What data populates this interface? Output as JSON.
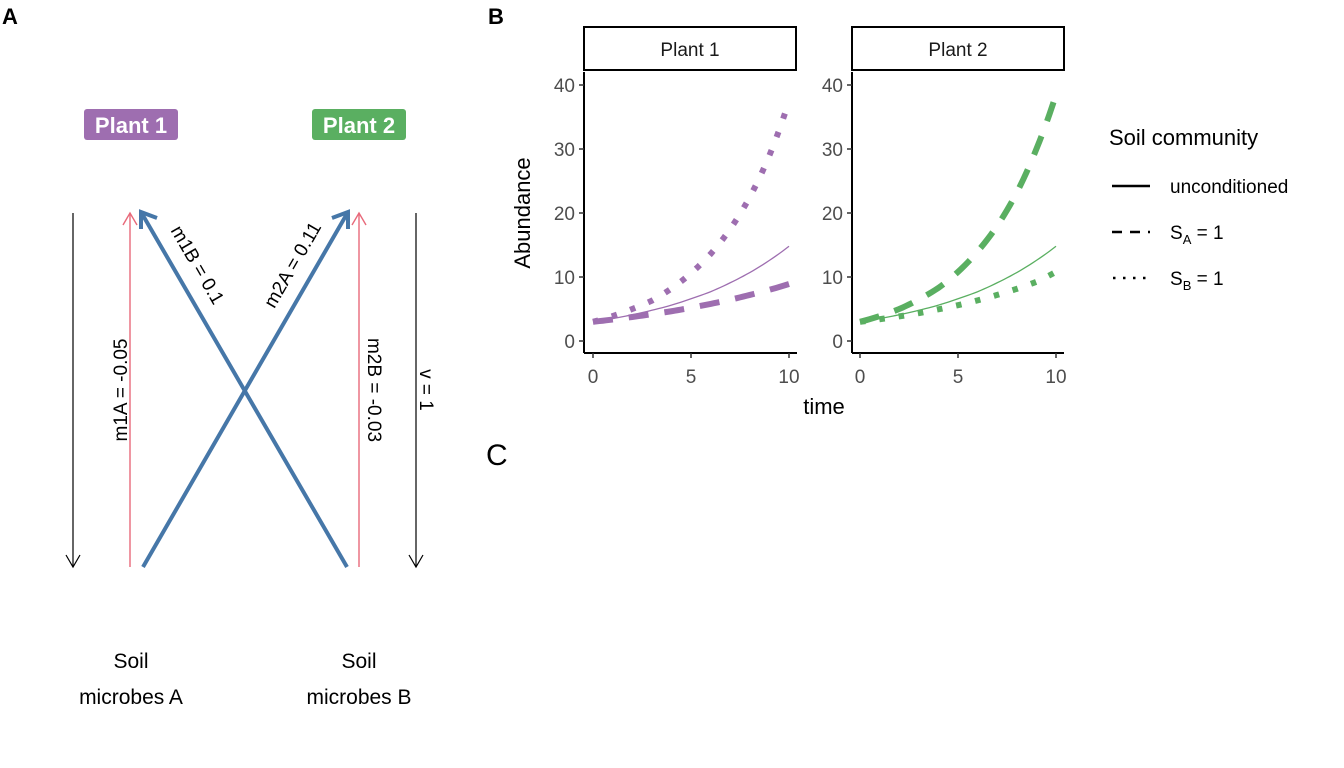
{
  "panels": {
    "a": {
      "letter": "A"
    },
    "b": {
      "letter": "B"
    },
    "c": {
      "letter": "C"
    }
  },
  "diagram": {
    "plant1": {
      "label": "Plant 1",
      "color": "#9E6EB0"
    },
    "plant2": {
      "label": "Plant 2",
      "color": "#5AAF61"
    },
    "soil_a": {
      "line1": "Soil",
      "line2": "microbes A"
    },
    "soil_b": {
      "line1": "Soil",
      "line2": "microbes B"
    },
    "edges": {
      "m1A": {
        "label": "m1A = -0.05",
        "color": "#E8697A"
      },
      "m1B": {
        "label": "m1B = 0.1",
        "color": "#4677A8"
      },
      "m2A": {
        "label": "m2A = 0.11",
        "color": "#4677A8"
      },
      "m2B": {
        "label": "m2B = -0.03",
        "color": "#E8697A"
      },
      "v_left": {
        "label": "",
        "color": "#000000"
      },
      "v_right": {
        "label": "v = 1",
        "color": "#000000"
      }
    }
  },
  "chart_data": {
    "type": "line",
    "xlabel": "time",
    "ylabel": "Abundance",
    "xlim": [
      0,
      10
    ],
    "ylim": [
      0,
      40
    ],
    "x_ticks": [
      "0",
      "5",
      "10"
    ],
    "y_ticks": [
      "0",
      "10",
      "20",
      "30",
      "40"
    ],
    "x_tick_values": [
      0,
      5,
      10
    ],
    "y_tick_values": [
      0,
      10,
      20,
      30,
      40
    ],
    "grid": false,
    "legend": {
      "title": "Soil community",
      "position": "right",
      "entries": [
        {
          "label": "unconditioned",
          "linetype": "solid"
        },
        {
          "label_main": "S",
          "label_sub": "A",
          "label_rest": " = 1",
          "linetype": "dashed"
        },
        {
          "label_main": "S",
          "label_sub": "B",
          "label_rest": " = 1",
          "linetype": "dotted"
        }
      ]
    },
    "facets": [
      {
        "title": "Plant 1",
        "color": "#9E6EB0",
        "series": [
          {
            "name": "unconditioned",
            "linetype": "solid",
            "x": [
              0,
              1,
              2,
              3,
              4,
              5,
              6,
              7,
              8,
              9,
              10
            ],
            "values": [
              3.0,
              3.5,
              4.1,
              4.8,
              5.6,
              6.6,
              7.7,
              9.1,
              10.7,
              12.6,
              14.8
            ]
          },
          {
            "name": "S_A = 1",
            "linetype": "dashed",
            "x": [
              0,
              1,
              2,
              3,
              4,
              5,
              6,
              7,
              8,
              9,
              10
            ],
            "values": [
              3.0,
              3.35,
              3.75,
              4.2,
              4.65,
              5.2,
              5.8,
              6.45,
              7.2,
              8.0,
              8.9
            ]
          },
          {
            "name": "S_B = 1",
            "linetype": "dotted",
            "x": [
              0,
              1,
              2,
              3,
              4,
              5,
              6,
              7,
              8,
              9,
              10
            ],
            "values": [
              3.0,
              3.9,
              5.0,
              6.3,
              8.2,
              10.6,
              13.6,
              17.5,
              22.5,
              29.0,
              37.5
            ]
          }
        ]
      },
      {
        "title": "Plant 2",
        "color": "#5AAF61",
        "series": [
          {
            "name": "unconditioned",
            "linetype": "solid",
            "x": [
              0,
              1,
              2,
              3,
              4,
              5,
              6,
              7,
              8,
              9,
              10
            ],
            "values": [
              3.0,
              3.5,
              4.1,
              4.8,
              5.6,
              6.6,
              7.7,
              9.1,
              10.7,
              12.6,
              14.8
            ]
          },
          {
            "name": "S_A = 1",
            "linetype": "dashed",
            "x": [
              0,
              1,
              2,
              3,
              4,
              5,
              6,
              7,
              8,
              9,
              10
            ],
            "values": [
              3.0,
              3.9,
              5.0,
              6.5,
              8.3,
              10.8,
              14.0,
              18.0,
              23.2,
              30.0,
              38.5
            ]
          },
          {
            "name": "S_B = 1",
            "linetype": "dotted",
            "x": [
              0,
              1,
              2,
              3,
              4,
              5,
              6,
              7,
              8,
              9,
              10
            ],
            "values": [
              3.0,
              3.4,
              3.85,
              4.35,
              4.95,
              5.6,
              6.35,
              7.2,
              8.15,
              9.25,
              10.8
            ]
          }
        ]
      }
    ]
  }
}
